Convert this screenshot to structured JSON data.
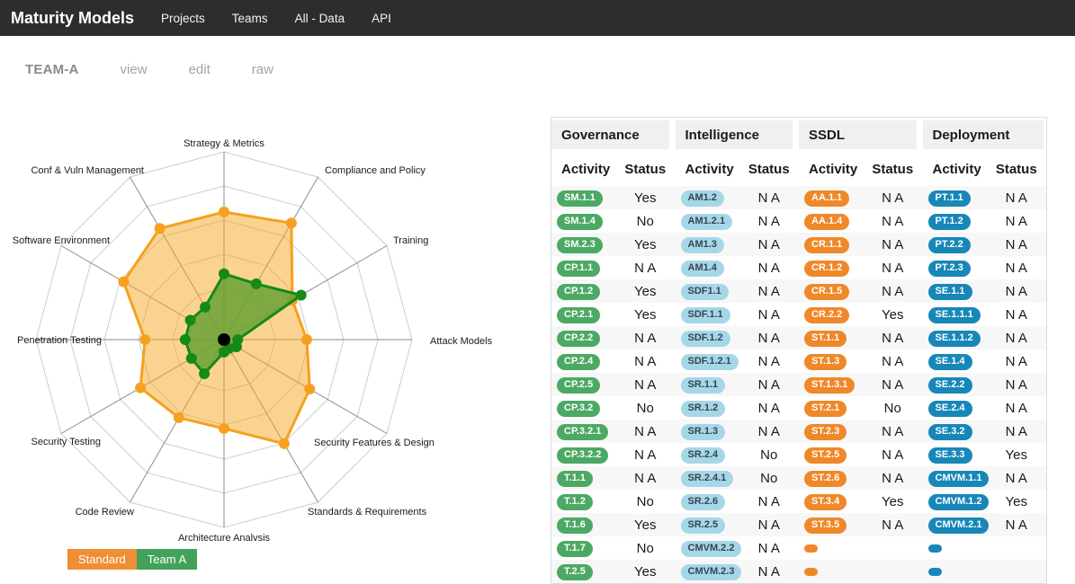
{
  "navbar": {
    "brand": "Maturity Models",
    "items": [
      {
        "label": "Projects"
      },
      {
        "label": "Teams"
      },
      {
        "label": "All - Data"
      },
      {
        "label": "API"
      }
    ]
  },
  "subnav": {
    "team": "TEAM-A",
    "tabs": [
      "view",
      "edit",
      "raw"
    ]
  },
  "chart_data": {
    "type": "radar",
    "axes": [
      "Strategy & Metrics",
      "Compliance and Policy",
      "Training",
      "Attack Models",
      "Security Features & Design",
      "Standards & Requirements",
      "Architecture Analvsis",
      "Code Review",
      "Security Testing",
      "Penetration Testing",
      "Software Environment",
      "Conf & Vuln Management"
    ],
    "max": 3,
    "rings": 6,
    "axis_line_color": "#8c8c8c",
    "ring_line_color": "#cccccc",
    "center_dot_color": "#000000",
    "series": [
      {
        "name": "Standard",
        "color": "#f5a11f",
        "fill": "rgba(247,168,35,0.5)",
        "legend_color": "#ef8e35",
        "values": [
          2.04,
          2.15,
          1.26,
          1.32,
          1.58,
          1.92,
          1.42,
          1.44,
          1.54,
          1.26,
          1.85,
          2.05
        ]
      },
      {
        "name": "Team A",
        "color": "#168a16",
        "fill": "rgba(96,160,48,0.8)",
        "legend_color": "#43a25a",
        "values": [
          1.05,
          1.03,
          1.42,
          0.22,
          0.23,
          0.16,
          0.2,
          0.63,
          0.6,
          0.62,
          0.62,
          0.6
        ]
      }
    ]
  },
  "table": {
    "columns": [
      "Activity",
      "Status"
    ],
    "groups": [
      {
        "name": "Governance",
        "badge_bg": "#4ca964",
        "badge_text": "#ffffff",
        "rows": [
          {
            "activity": "SM.1.1",
            "status": "Yes"
          },
          {
            "activity": "SM.1.4",
            "status": "No"
          },
          {
            "activity": "SM.2.3",
            "status": "Yes"
          },
          {
            "activity": "CP.1.1",
            "status": "N A"
          },
          {
            "activity": "CP.1.2",
            "status": "Yes"
          },
          {
            "activity": "CP.2.1",
            "status": "Yes"
          },
          {
            "activity": "CP.2.2",
            "status": "N A"
          },
          {
            "activity": "CP.2.4",
            "status": "N A"
          },
          {
            "activity": "CP.2.5",
            "status": "N A"
          },
          {
            "activity": "CP.3.2",
            "status": "No"
          },
          {
            "activity": "CP.3.2.1",
            "status": "N A"
          },
          {
            "activity": "CP.3.2.2",
            "status": "N A"
          },
          {
            "activity": "T.1.1",
            "status": "N A"
          },
          {
            "activity": "T.1.2",
            "status": "No"
          },
          {
            "activity": "T.1.6",
            "status": "Yes"
          },
          {
            "activity": "T.1.7",
            "status": "No"
          },
          {
            "activity": "T.2.5",
            "status": "Yes"
          }
        ]
      },
      {
        "name": "Intelligence",
        "badge_bg": "#a6d7e8",
        "badge_text": "#36454f",
        "rows": [
          {
            "activity": "AM1.2",
            "status": "N A"
          },
          {
            "activity": "AM1.2.1",
            "status": "N A"
          },
          {
            "activity": "AM1.3",
            "status": "N A"
          },
          {
            "activity": "AM1.4",
            "status": "N A"
          },
          {
            "activity": "SDF1.1",
            "status": "N A"
          },
          {
            "activity": "SDF.1.1",
            "status": "N A"
          },
          {
            "activity": "SDF.1.2",
            "status": "N A"
          },
          {
            "activity": "SDF.1.2.1",
            "status": "N A"
          },
          {
            "activity": "SR.1.1",
            "status": "N A"
          },
          {
            "activity": "SR.1.2",
            "status": "N A"
          },
          {
            "activity": "SR.1.3",
            "status": "N A"
          },
          {
            "activity": "SR.2.4",
            "status": "No"
          },
          {
            "activity": "SR.2.4.1",
            "status": "No"
          },
          {
            "activity": "SR.2.6",
            "status": "N A"
          },
          {
            "activity": "SR.2.5",
            "status": "N A"
          },
          {
            "activity": "CMVM.2.2",
            "status": "N A"
          },
          {
            "activity": "CMVM.2.3",
            "status": "N A"
          }
        ]
      },
      {
        "name": "SSDL",
        "badge_bg": "#ef8829",
        "badge_text": "#ffffff",
        "rows": [
          {
            "activity": "AA.1.1",
            "status": "N A"
          },
          {
            "activity": "AA.1.4",
            "status": "N A"
          },
          {
            "activity": "CR.1.1",
            "status": "N A"
          },
          {
            "activity": "CR.1.2",
            "status": "N A"
          },
          {
            "activity": "CR.1.5",
            "status": "N A"
          },
          {
            "activity": "CR.2.2",
            "status": "Yes"
          },
          {
            "activity": "ST.1.1",
            "status": "N A"
          },
          {
            "activity": "ST.1.3",
            "status": "N A"
          },
          {
            "activity": "ST.1.3.1",
            "status": "N A"
          },
          {
            "activity": "ST.2.1",
            "status": "No"
          },
          {
            "activity": "ST.2.3",
            "status": "N A"
          },
          {
            "activity": "ST.2.5",
            "status": "N A"
          },
          {
            "activity": "ST.2.6",
            "status": "N A"
          },
          {
            "activity": "ST.3.4",
            "status": "Yes"
          },
          {
            "activity": "ST.3.5",
            "status": "N A"
          },
          {
            "activity": "",
            "status": ""
          },
          {
            "activity": "",
            "status": ""
          }
        ]
      },
      {
        "name": "Deployment",
        "badge_bg": "#1787b8",
        "badge_text": "#ffffff",
        "rows": [
          {
            "activity": "PT.1.1",
            "status": "N A"
          },
          {
            "activity": "PT.1.2",
            "status": "N A"
          },
          {
            "activity": "PT.2.2",
            "status": "N A"
          },
          {
            "activity": "PT.2.3",
            "status": "N A"
          },
          {
            "activity": "SE.1.1",
            "status": "N A"
          },
          {
            "activity": "SE.1.1.1",
            "status": "N A"
          },
          {
            "activity": "SE.1.1.2",
            "status": "N A"
          },
          {
            "activity": "SE.1.4",
            "status": "N A"
          },
          {
            "activity": "SE.2.2",
            "status": "N A"
          },
          {
            "activity": "SE.2.4",
            "status": "N A"
          },
          {
            "activity": "SE.3.2",
            "status": "N A"
          },
          {
            "activity": "SE.3.3",
            "status": "Yes"
          },
          {
            "activity": "CMVM.1.1",
            "status": "N A"
          },
          {
            "activity": "CMVM.1.2",
            "status": "Yes"
          },
          {
            "activity": "CMVM.2.1",
            "status": "N A"
          },
          {
            "activity": "",
            "status": ""
          },
          {
            "activity": "",
            "status": ""
          }
        ]
      }
    ]
  }
}
